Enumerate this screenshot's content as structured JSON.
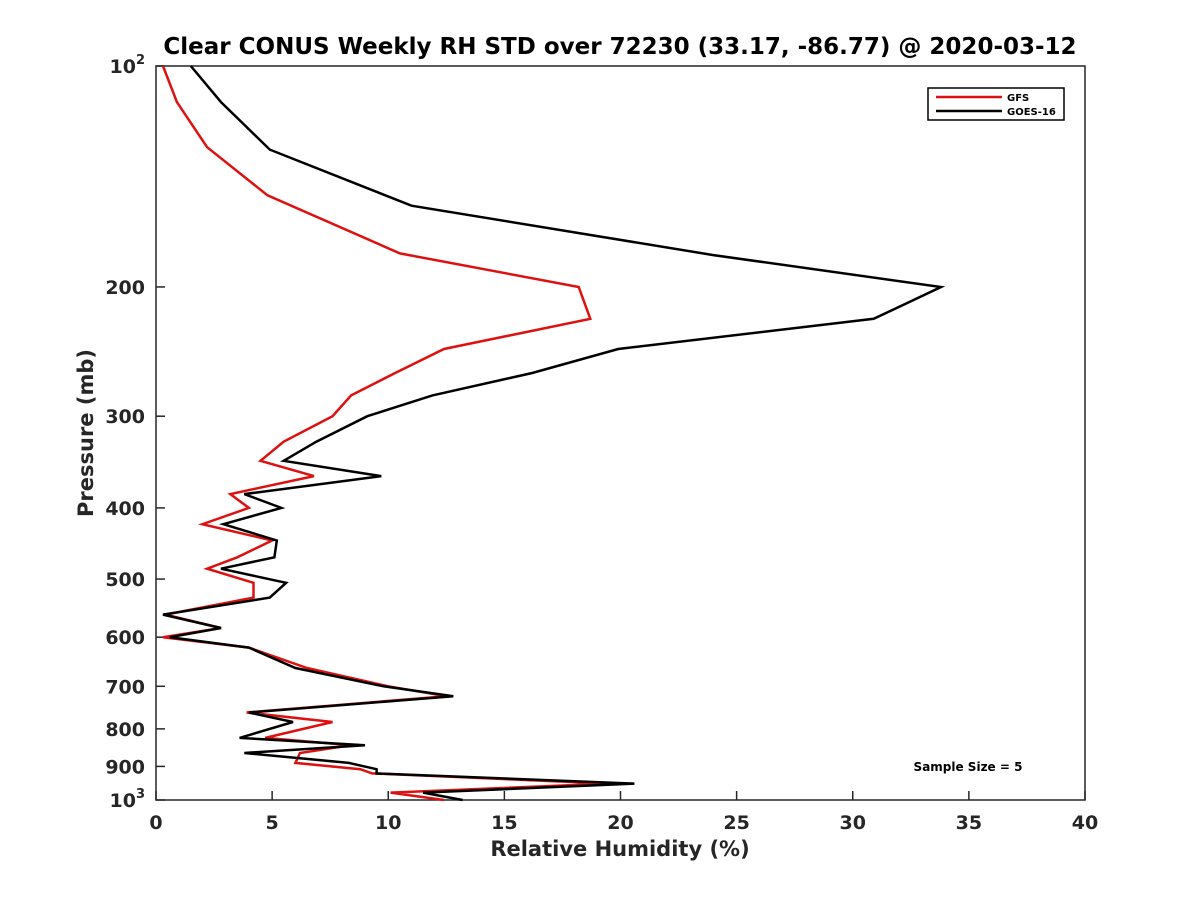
{
  "chart_data": {
    "type": "line",
    "title": "Clear CONUS Weekly RH STD over 72230 (33.17, -86.77) @ 2020-03-12",
    "xlabel": "Relative Humidity (%)",
    "ylabel": "Pressure (mb)",
    "xlim": [
      0,
      40
    ],
    "ylim": [
      100,
      1000
    ],
    "yscale": "log",
    "y_reversed": true,
    "grid": false,
    "legend_position": "top-right",
    "x_ticks": [
      {
        "value": 0,
        "label": "0"
      },
      {
        "value": 5,
        "label": "5"
      },
      {
        "value": 10,
        "label": "10"
      },
      {
        "value": 15,
        "label": "15"
      },
      {
        "value": 20,
        "label": "20"
      },
      {
        "value": 25,
        "label": "25"
      },
      {
        "value": 30,
        "label": "30"
      },
      {
        "value": 35,
        "label": "35"
      },
      {
        "value": 40,
        "label": "40"
      }
    ],
    "y_ticks": [
      {
        "value": 100,
        "label": "10",
        "sup": "2"
      },
      {
        "value": 200,
        "label": "200",
        "sup": ""
      },
      {
        "value": 300,
        "label": "300",
        "sup": ""
      },
      {
        "value": 400,
        "label": "400",
        "sup": ""
      },
      {
        "value": 500,
        "label": "500",
        "sup": ""
      },
      {
        "value": 600,
        "label": "600",
        "sup": ""
      },
      {
        "value": 700,
        "label": "700",
        "sup": ""
      },
      {
        "value": 800,
        "label": "800",
        "sup": ""
      },
      {
        "value": 900,
        "label": "900",
        "sup": ""
      },
      {
        "value": 1000,
        "label": "10",
        "sup": "3"
      }
    ],
    "series": [
      {
        "name": "GFS",
        "color": "#dd1111",
        "points": [
          [
            0.3,
            100
          ],
          [
            0.9,
            112
          ],
          [
            2.2,
            129
          ],
          [
            4.8,
            150
          ],
          [
            10.5,
            180
          ],
          [
            18.2,
            200
          ],
          [
            18.7,
            221
          ],
          [
            12.4,
            243
          ],
          [
            10.3,
            262
          ],
          [
            8.4,
            281
          ],
          [
            7.6,
            300
          ],
          [
            5.5,
            325
          ],
          [
            4.5,
            345
          ],
          [
            6.8,
            362
          ],
          [
            3.2,
            383
          ],
          [
            4.0,
            400
          ],
          [
            2.0,
            421
          ],
          [
            5.0,
            443
          ],
          [
            3.5,
            467
          ],
          [
            2.2,
            484
          ],
          [
            4.2,
            506
          ],
          [
            4.2,
            530
          ],
          [
            0.4,
            559
          ],
          [
            2.8,
            583
          ],
          [
            0.3,
            600
          ],
          [
            4.0,
            620
          ],
          [
            6.5,
            661
          ],
          [
            10.0,
            700
          ],
          [
            12.5,
            722
          ],
          [
            3.9,
            760
          ],
          [
            7.6,
            783
          ],
          [
            4.7,
            823
          ],
          [
            8.4,
            842
          ],
          [
            6.2,
            863
          ],
          [
            6.0,
            890
          ],
          [
            8.8,
            908
          ],
          [
            9.3,
            920
          ],
          [
            19.5,
            950
          ],
          [
            10.1,
            977
          ],
          [
            12.4,
            1000
          ]
        ]
      },
      {
        "name": "GOES-16",
        "color": "#000000",
        "points": [
          [
            1.5,
            100
          ],
          [
            2.8,
            112
          ],
          [
            4.9,
            130
          ],
          [
            11.0,
            155
          ],
          [
            24.0,
            181
          ],
          [
            33.8,
            200
          ],
          [
            30.9,
            221
          ],
          [
            19.9,
            243
          ],
          [
            16.2,
            262
          ],
          [
            11.9,
            281
          ],
          [
            9.1,
            300
          ],
          [
            6.9,
            325
          ],
          [
            5.5,
            345
          ],
          [
            9.7,
            362
          ],
          [
            3.8,
            383
          ],
          [
            5.4,
            400
          ],
          [
            2.9,
            421
          ],
          [
            5.2,
            443
          ],
          [
            5.1,
            467
          ],
          [
            2.8,
            484
          ],
          [
            5.6,
            506
          ],
          [
            4.9,
            530
          ],
          [
            0.3,
            559
          ],
          [
            2.8,
            583
          ],
          [
            0.6,
            600
          ],
          [
            4.0,
            620
          ],
          [
            6.0,
            661
          ],
          [
            9.8,
            700
          ],
          [
            12.8,
            722
          ],
          [
            4.0,
            760
          ],
          [
            5.9,
            783
          ],
          [
            3.6,
            823
          ],
          [
            9.0,
            842
          ],
          [
            3.8,
            863
          ],
          [
            8.3,
            890
          ],
          [
            9.5,
            908
          ],
          [
            9.5,
            920
          ],
          [
            20.6,
            950
          ],
          [
            11.5,
            977
          ],
          [
            13.2,
            1000
          ]
        ]
      }
    ],
    "annotation": "Sample Size = 5"
  }
}
